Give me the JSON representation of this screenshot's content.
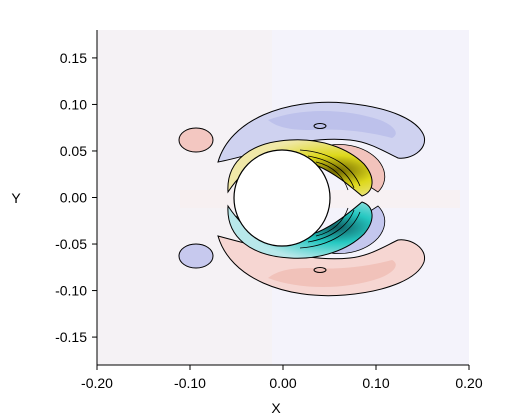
{
  "chart_data": {
    "type": "contour",
    "title": "",
    "xlabel": "X",
    "ylabel": "Y",
    "xlim": [
      -0.2,
      0.2
    ],
    "ylim": [
      -0.18,
      0.18
    ],
    "x_ticks": [
      -0.2,
      -0.1,
      0.0,
      0.1,
      0.2
    ],
    "x_tick_labels": [
      "-0.20",
      "-0.10",
      "0.00",
      "0.10",
      "0.20"
    ],
    "y_ticks": [
      0.15,
      0.1,
      0.05,
      0.0,
      -0.05,
      -0.1,
      -0.15
    ],
    "y_tick_labels": [
      "0.15",
      "0.10",
      "0.05",
      "0.00",
      "-0.05",
      "-0.10",
      "-0.15"
    ],
    "grid": false,
    "cylinder": {
      "center": [
        0.0,
        0.0
      ],
      "radius": 0.05
    },
    "colors": {
      "background_field": "#f4f3fb",
      "positive_yellow": "#ddd81a",
      "negative_cyan": "#25c8c1",
      "light_red": "#f3c7c1",
      "light_blue": "#c7c9ee",
      "contour_line": "#000000"
    }
  }
}
